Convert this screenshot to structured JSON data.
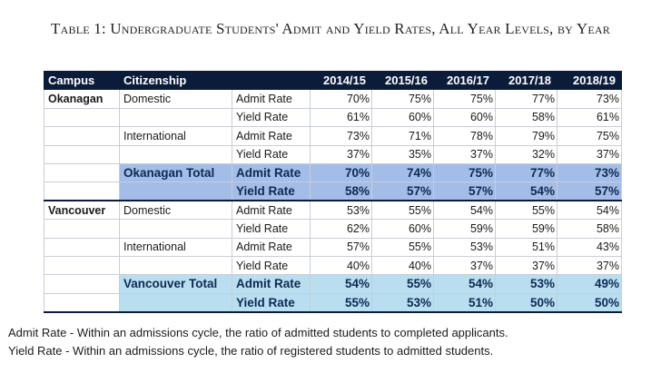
{
  "title": "Table 1: Undergraduate Students' Admit and Yield Rates, All Year Levels, by Year",
  "headers": [
    "Campus",
    "Citizenship",
    "",
    "2014/15",
    "2015/16",
    "2016/17",
    "2017/18",
    "2018/19"
  ],
  "rows": [
    [
      "Okanagan",
      "Domestic",
      "Admit Rate",
      "70%",
      "75%",
      "75%",
      "77%",
      "73%"
    ],
    [
      "",
      "",
      "Yield Rate",
      "61%",
      "60%",
      "60%",
      "58%",
      "61%"
    ],
    [
      "",
      "International",
      "Admit Rate",
      "73%",
      "71%",
      "78%",
      "79%",
      "75%"
    ],
    [
      "",
      "",
      "Yield Rate",
      "37%",
      "35%",
      "37%",
      "32%",
      "37%"
    ],
    [
      "",
      "Okanagan Total",
      "Admit Rate",
      "70%",
      "74%",
      "75%",
      "77%",
      "73%"
    ],
    [
      "",
      "",
      "Yield Rate",
      "58%",
      "57%",
      "57%",
      "54%",
      "57%"
    ],
    [
      "Vancouver",
      "Domestic",
      "Admit Rate",
      "53%",
      "55%",
      "54%",
      "55%",
      "54%"
    ],
    [
      "",
      "",
      "Yield Rate",
      "62%",
      "60%",
      "59%",
      "59%",
      "58%"
    ],
    [
      "",
      "International",
      "Admit Rate",
      "57%",
      "55%",
      "53%",
      "51%",
      "43%"
    ],
    [
      "",
      "",
      "Yield Rate",
      "40%",
      "40%",
      "37%",
      "37%",
      "37%"
    ],
    [
      "",
      "Vancouver Total",
      "Admit Rate",
      "54%",
      "55%",
      "54%",
      "53%",
      "49%"
    ],
    [
      "",
      "",
      "Yield Rate",
      "55%",
      "53%",
      "51%",
      "50%",
      "50%"
    ]
  ],
  "notes": [
    "Admit Rate - Within an admissions cycle, the ratio of admitted students to completed applicants.",
    "Yield Rate - Within an admissions cycle, the ratio of registered students to admitted students."
  ],
  "colors": {
    "header_bg": "#0b1b3a",
    "okanagan_total_bg": "#a4bde8",
    "vancouver_total_bg": "#b9def0"
  }
}
